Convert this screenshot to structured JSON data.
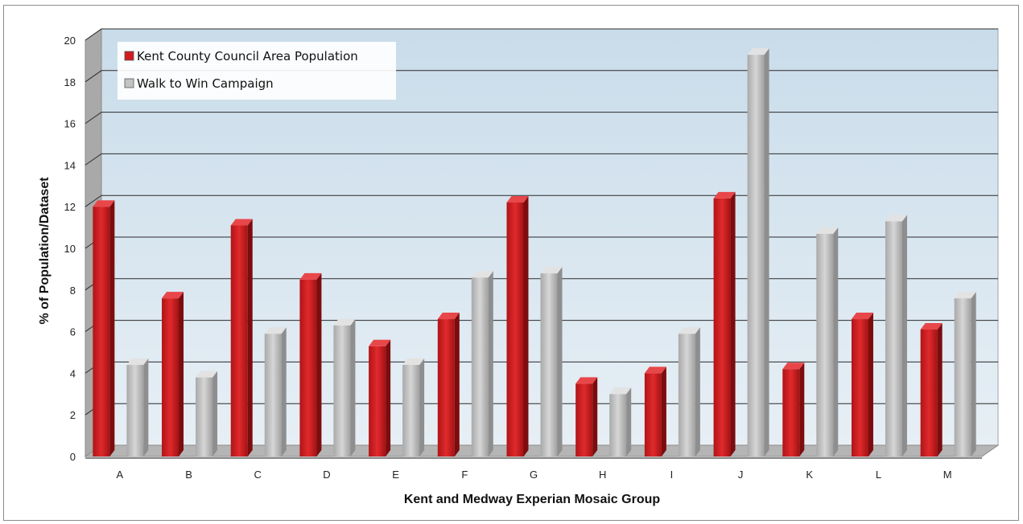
{
  "chart_data": {
    "type": "bar",
    "xlabel": "Kent and Medway Experian Mosaic Group",
    "ylabel": "% of Population/Dataset",
    "ylim": [
      0,
      20
    ],
    "yticks": [
      0,
      2,
      4,
      6,
      8,
      10,
      12,
      14,
      16,
      18,
      20
    ],
    "grid": true,
    "legend_position": "top-left",
    "categories": [
      "A",
      "B",
      "C",
      "D",
      "E",
      "F",
      "G",
      "H",
      "I",
      "J",
      "K",
      "L",
      "M"
    ],
    "series": [
      {
        "name": "Kent County Council Area Population",
        "color": "#d01c1f",
        "values": [
          12.0,
          7.6,
          11.1,
          8.5,
          5.3,
          6.6,
          12.2,
          3.5,
          4.0,
          12.4,
          4.2,
          6.6,
          6.1
        ]
      },
      {
        "name": "Walk to Win Campaign",
        "color": "#c3c3c3",
        "values": [
          4.4,
          3.8,
          5.9,
          6.3,
          4.4,
          8.6,
          8.8,
          3.0,
          5.9,
          19.3,
          10.7,
          11.3,
          7.6
        ]
      }
    ]
  }
}
